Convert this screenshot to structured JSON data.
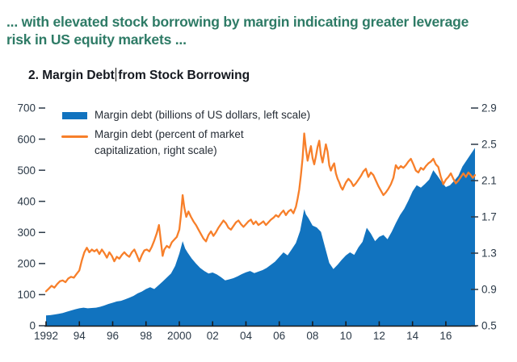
{
  "caption": {
    "lines": [
      "... with elevated stock borrowing by margin indicating greater leverage",
      "risk in US equity markets ..."
    ]
  },
  "title": {
    "before_caret": "2. Margin Debt",
    "after_caret": "from Stock Borrowing"
  },
  "colors": {
    "caption_text": "#2e7b66",
    "title_text": "#14181f",
    "axis_text": "#2b3947",
    "axis_line": "#1a1a1a",
    "area_fill": "#1173bf",
    "line_stroke": "#f77f2a",
    "background": "#ffffff"
  },
  "chart_data": {
    "type": "area",
    "title": "2. Margin Debt from Stock Borrowing",
    "grid": false,
    "legend_position": "top-left-inside",
    "x_axis": {
      "range": [
        1992,
        2017.75
      ],
      "tick_years": [
        1992,
        1994,
        1996,
        1998,
        2000,
        2002,
        2004,
        2006,
        2008,
        2010,
        2012,
        2014,
        2016
      ],
      "tick_labels": [
        "1992",
        "94",
        "96",
        "98",
        "2000",
        "02",
        "04",
        "06",
        "08",
        "10",
        "12",
        "14",
        "16"
      ]
    },
    "y_left": {
      "range": [
        0,
        700
      ],
      "ticks": [
        0,
        100,
        200,
        300,
        400,
        500,
        600,
        700
      ],
      "label": "billions of US dollars"
    },
    "y_right": {
      "range": [
        0.5,
        2.9
      ],
      "ticks": [
        0.5,
        0.9,
        1.3,
        1.7,
        2.1,
        2.5,
        2.9
      ],
      "label": "percent of market capitalization"
    },
    "series": [
      {
        "name": "Margin debt (billions of US dollars, left scale)",
        "type": "area",
        "axis": "left",
        "color": "#1173bf",
        "points": [
          [
            1992,
            33
          ],
          [
            1992.25,
            34
          ],
          [
            1992.5,
            36
          ],
          [
            1992.75,
            38
          ],
          [
            1993,
            41
          ],
          [
            1993.25,
            45
          ],
          [
            1993.5,
            49
          ],
          [
            1993.75,
            53
          ],
          [
            1994,
            56
          ],
          [
            1994.25,
            58
          ],
          [
            1994.5,
            56
          ],
          [
            1994.75,
            57
          ],
          [
            1995,
            58
          ],
          [
            1995.25,
            61
          ],
          [
            1995.5,
            65
          ],
          [
            1995.75,
            70
          ],
          [
            1996,
            74
          ],
          [
            1996.25,
            78
          ],
          [
            1996.5,
            80
          ],
          [
            1996.75,
            85
          ],
          [
            1997,
            90
          ],
          [
            1997.25,
            96
          ],
          [
            1997.5,
            104
          ],
          [
            1997.75,
            110
          ],
          [
            1998,
            118
          ],
          [
            1998.25,
            124
          ],
          [
            1998.5,
            118
          ],
          [
            1998.75,
            130
          ],
          [
            1999,
            142
          ],
          [
            1999.25,
            155
          ],
          [
            1999.5,
            168
          ],
          [
            1999.75,
            192
          ],
          [
            2000,
            232
          ],
          [
            2000.2,
            272
          ],
          [
            2000.35,
            248
          ],
          [
            2000.5,
            235
          ],
          [
            2000.75,
            216
          ],
          [
            2001,
            200
          ],
          [
            2001.25,
            186
          ],
          [
            2001.5,
            176
          ],
          [
            2001.75,
            168
          ],
          [
            2002,
            171
          ],
          [
            2002.25,
            165
          ],
          [
            2002.5,
            156
          ],
          [
            2002.75,
            146
          ],
          [
            2003,
            149
          ],
          [
            2003.25,
            153
          ],
          [
            2003.5,
            159
          ],
          [
            2003.75,
            166
          ],
          [
            2004,
            172
          ],
          [
            2004.25,
            176
          ],
          [
            2004.5,
            169
          ],
          [
            2004.75,
            174
          ],
          [
            2005,
            179
          ],
          [
            2005.25,
            186
          ],
          [
            2005.5,
            196
          ],
          [
            2005.75,
            206
          ],
          [
            2006,
            221
          ],
          [
            2006.25,
            236
          ],
          [
            2006.5,
            226
          ],
          [
            2006.75,
            246
          ],
          [
            2007,
            266
          ],
          [
            2007.25,
            305
          ],
          [
            2007.5,
            375
          ],
          [
            2007.6,
            358
          ],
          [
            2007.75,
            346
          ],
          [
            2008,
            322
          ],
          [
            2008.25,
            316
          ],
          [
            2008.5,
            302
          ],
          [
            2008.75,
            252
          ],
          [
            2009,
            202
          ],
          [
            2009.25,
            182
          ],
          [
            2009.5,
            196
          ],
          [
            2009.75,
            212
          ],
          [
            2010,
            226
          ],
          [
            2010.25,
            236
          ],
          [
            2010.5,
            228
          ],
          [
            2010.75,
            252
          ],
          [
            2011,
            270
          ],
          [
            2011.25,
            315
          ],
          [
            2011.5,
            296
          ],
          [
            2011.75,
            272
          ],
          [
            2012,
            286
          ],
          [
            2012.25,
            292
          ],
          [
            2012.5,
            278
          ],
          [
            2012.75,
            302
          ],
          [
            2013,
            330
          ],
          [
            2013.25,
            356
          ],
          [
            2013.5,
            376
          ],
          [
            2013.75,
            402
          ],
          [
            2014,
            432
          ],
          [
            2014.25,
            452
          ],
          [
            2014.5,
            444
          ],
          [
            2014.75,
            456
          ],
          [
            2015,
            470
          ],
          [
            2015.25,
            500
          ],
          [
            2015.5,
            482
          ],
          [
            2015.75,
            462
          ],
          [
            2016,
            446
          ],
          [
            2016.25,
            452
          ],
          [
            2016.5,
            466
          ],
          [
            2016.75,
            482
          ],
          [
            2017,
            512
          ],
          [
            2017.25,
            532
          ],
          [
            2017.5,
            552
          ],
          [
            2017.75,
            572
          ]
        ]
      },
      {
        "name": "Margin debt (percent of market capitalization, right scale)",
        "type": "line",
        "axis": "right",
        "color": "#f77f2a",
        "points": [
          [
            1992,
            0.88
          ],
          [
            1992.17,
            0.91
          ],
          [
            1992.33,
            0.94
          ],
          [
            1992.5,
            0.92
          ],
          [
            1992.67,
            0.96
          ],
          [
            1992.83,
            0.99
          ],
          [
            1993,
            1.0
          ],
          [
            1993.17,
            0.98
          ],
          [
            1993.33,
            1.02
          ],
          [
            1993.5,
            1.04
          ],
          [
            1993.67,
            1.03
          ],
          [
            1993.83,
            1.07
          ],
          [
            1994,
            1.11
          ],
          [
            1994.15,
            1.22
          ],
          [
            1994.3,
            1.31
          ],
          [
            1994.45,
            1.36
          ],
          [
            1994.6,
            1.31
          ],
          [
            1994.75,
            1.34
          ],
          [
            1994.9,
            1.32
          ],
          [
            1995.05,
            1.34
          ],
          [
            1995.2,
            1.29
          ],
          [
            1995.35,
            1.34
          ],
          [
            1995.5,
            1.3
          ],
          [
            1995.65,
            1.25
          ],
          [
            1995.8,
            1.31
          ],
          [
            1995.95,
            1.27
          ],
          [
            1996.1,
            1.21
          ],
          [
            1996.25,
            1.26
          ],
          [
            1996.4,
            1.24
          ],
          [
            1996.55,
            1.28
          ],
          [
            1996.7,
            1.31
          ],
          [
            1996.85,
            1.28
          ],
          [
            1997,
            1.26
          ],
          [
            1997.15,
            1.31
          ],
          [
            1997.3,
            1.34
          ],
          [
            1997.45,
            1.28
          ],
          [
            1997.6,
            1.21
          ],
          [
            1997.75,
            1.28
          ],
          [
            1997.9,
            1.33
          ],
          [
            1998.05,
            1.34
          ],
          [
            1998.2,
            1.32
          ],
          [
            1998.35,
            1.37
          ],
          [
            1998.5,
            1.44
          ],
          [
            1998.65,
            1.52
          ],
          [
            1998.78,
            1.61
          ],
          [
            1998.9,
            1.42
          ],
          [
            1999,
            1.27
          ],
          [
            1999.1,
            1.34
          ],
          [
            1999.25,
            1.38
          ],
          [
            1999.4,
            1.36
          ],
          [
            1999.55,
            1.42
          ],
          [
            1999.7,
            1.45
          ],
          [
            1999.85,
            1.48
          ],
          [
            2000,
            1.56
          ],
          [
            2000.1,
            1.72
          ],
          [
            2000.2,
            1.94
          ],
          [
            2000.3,
            1.8
          ],
          [
            2000.42,
            1.7
          ],
          [
            2000.55,
            1.76
          ],
          [
            2000.7,
            1.7
          ],
          [
            2000.85,
            1.65
          ],
          [
            2001,
            1.61
          ],
          [
            2001.15,
            1.56
          ],
          [
            2001.3,
            1.51
          ],
          [
            2001.45,
            1.46
          ],
          [
            2001.6,
            1.43
          ],
          [
            2001.75,
            1.5
          ],
          [
            2001.9,
            1.54
          ],
          [
            2002.05,
            1.49
          ],
          [
            2002.2,
            1.53
          ],
          [
            2002.35,
            1.58
          ],
          [
            2002.5,
            1.62
          ],
          [
            2002.65,
            1.66
          ],
          [
            2002.8,
            1.63
          ],
          [
            2002.95,
            1.58
          ],
          [
            2003.1,
            1.56
          ],
          [
            2003.25,
            1.6
          ],
          [
            2003.4,
            1.64
          ],
          [
            2003.55,
            1.66
          ],
          [
            2003.7,
            1.62
          ],
          [
            2003.85,
            1.59
          ],
          [
            2004,
            1.62
          ],
          [
            2004.15,
            1.65
          ],
          [
            2004.3,
            1.67
          ],
          [
            2004.45,
            1.62
          ],
          [
            2004.6,
            1.65
          ],
          [
            2004.75,
            1.61
          ],
          [
            2004.9,
            1.63
          ],
          [
            2005.05,
            1.65
          ],
          [
            2005.2,
            1.61
          ],
          [
            2005.35,
            1.64
          ],
          [
            2005.5,
            1.67
          ],
          [
            2005.65,
            1.69
          ],
          [
            2005.8,
            1.72
          ],
          [
            2005.95,
            1.7
          ],
          [
            2006.1,
            1.74
          ],
          [
            2006.25,
            1.77
          ],
          [
            2006.4,
            1.72
          ],
          [
            2006.55,
            1.76
          ],
          [
            2006.7,
            1.78
          ],
          [
            2006.85,
            1.74
          ],
          [
            2007,
            1.81
          ],
          [
            2007.1,
            1.9
          ],
          [
            2007.2,
            2.0
          ],
          [
            2007.3,
            2.16
          ],
          [
            2007.4,
            2.35
          ],
          [
            2007.5,
            2.62
          ],
          [
            2007.6,
            2.45
          ],
          [
            2007.7,
            2.32
          ],
          [
            2007.8,
            2.4
          ],
          [
            2007.9,
            2.48
          ],
          [
            2008,
            2.35
          ],
          [
            2008.1,
            2.28
          ],
          [
            2008.2,
            2.37
          ],
          [
            2008.3,
            2.47
          ],
          [
            2008.4,
            2.54
          ],
          [
            2008.5,
            2.38
          ],
          [
            2008.6,
            2.3
          ],
          [
            2008.7,
            2.4
          ],
          [
            2008.8,
            2.5
          ],
          [
            2008.9,
            2.42
          ],
          [
            2009,
            2.27
          ],
          [
            2009.1,
            2.21
          ],
          [
            2009.2,
            2.26
          ],
          [
            2009.3,
            2.29
          ],
          [
            2009.4,
            2.18
          ],
          [
            2009.5,
            2.12
          ],
          [
            2009.6,
            2.08
          ],
          [
            2009.7,
            2.03
          ],
          [
            2009.8,
            2.0
          ],
          [
            2009.9,
            2.04
          ],
          [
            2010,
            2.08
          ],
          [
            2010.15,
            2.12
          ],
          [
            2010.3,
            2.09
          ],
          [
            2010.45,
            2.04
          ],
          [
            2010.6,
            2.07
          ],
          [
            2010.75,
            2.11
          ],
          [
            2010.9,
            2.15
          ],
          [
            2011.05,
            2.2
          ],
          [
            2011.2,
            2.23
          ],
          [
            2011.35,
            2.14
          ],
          [
            2011.5,
            2.19
          ],
          [
            2011.65,
            2.16
          ],
          [
            2011.8,
            2.1
          ],
          [
            2011.95,
            2.04
          ],
          [
            2012.1,
            1.99
          ],
          [
            2012.25,
            1.94
          ],
          [
            2012.4,
            1.97
          ],
          [
            2012.55,
            2.01
          ],
          [
            2012.7,
            2.06
          ],
          [
            2012.85,
            2.13
          ],
          [
            2013,
            2.27
          ],
          [
            2013.15,
            2.23
          ],
          [
            2013.3,
            2.26
          ],
          [
            2013.45,
            2.24
          ],
          [
            2013.6,
            2.27
          ],
          [
            2013.75,
            2.31
          ],
          [
            2013.9,
            2.34
          ],
          [
            2014.05,
            2.28
          ],
          [
            2014.2,
            2.21
          ],
          [
            2014.35,
            2.19
          ],
          [
            2014.5,
            2.24
          ],
          [
            2014.65,
            2.22
          ],
          [
            2014.8,
            2.26
          ],
          [
            2014.95,
            2.29
          ],
          [
            2015.1,
            2.31
          ],
          [
            2015.25,
            2.34
          ],
          [
            2015.4,
            2.28
          ],
          [
            2015.55,
            2.25
          ],
          [
            2015.7,
            2.14
          ],
          [
            2015.85,
            2.06
          ],
          [
            2016,
            2.11
          ],
          [
            2016.15,
            2.14
          ],
          [
            2016.3,
            2.18
          ],
          [
            2016.45,
            2.12
          ],
          [
            2016.6,
            2.07
          ],
          [
            2016.75,
            2.1
          ],
          [
            2016.9,
            2.14
          ],
          [
            2017.05,
            2.18
          ],
          [
            2017.2,
            2.14
          ],
          [
            2017.35,
            2.19
          ],
          [
            2017.5,
            2.16
          ],
          [
            2017.62,
            2.13
          ],
          [
            2017.75,
            2.16
          ]
        ]
      }
    ]
  }
}
